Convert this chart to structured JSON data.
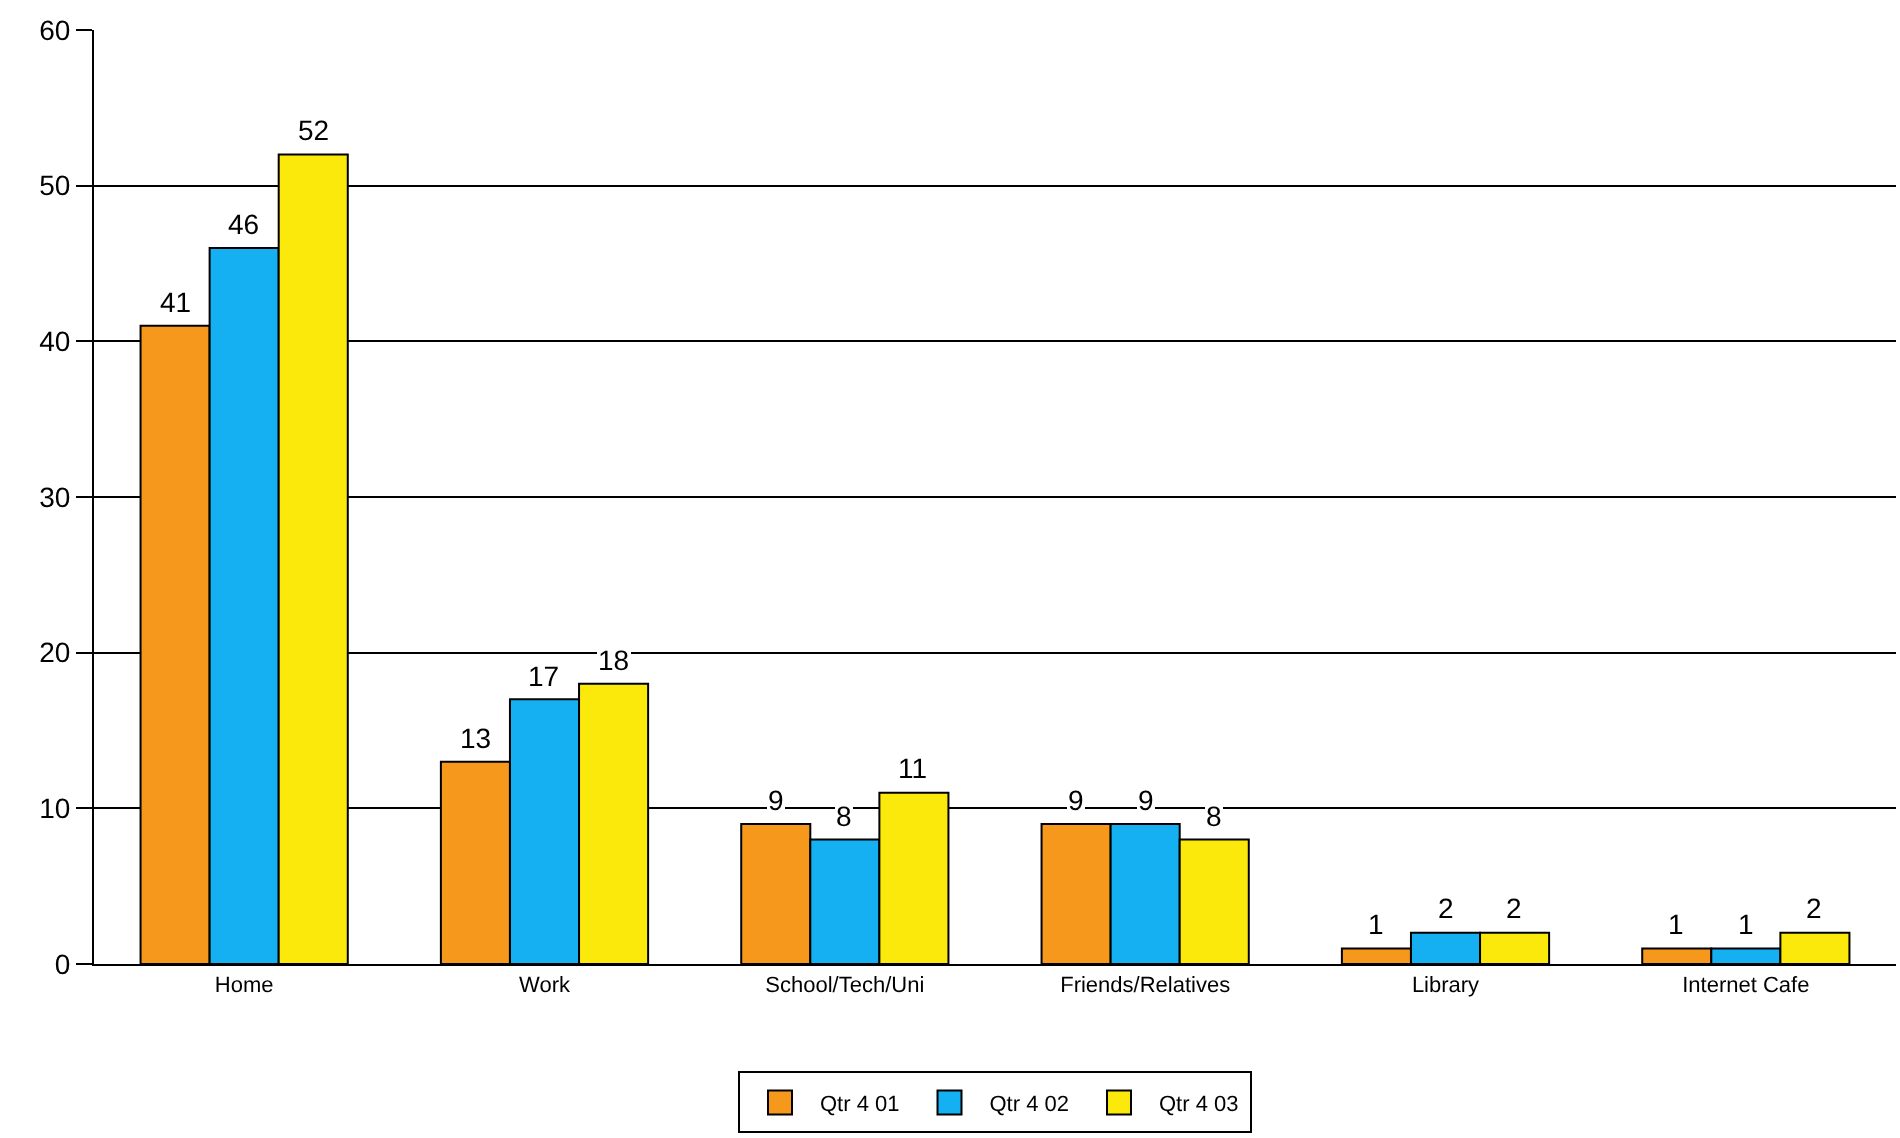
{
  "chart_data": {
    "type": "bar",
    "categories": [
      "Home",
      "Work",
      "School/Tech/Uni",
      "Friends/Relatives",
      "Library",
      "Internet Cafe"
    ],
    "series": [
      {
        "name": "Qtr 4 01",
        "color": "#f5981c",
        "values": [
          41,
          13,
          9,
          9,
          1,
          1
        ]
      },
      {
        "name": "Qtr 4 02",
        "color": "#14b0f2",
        "values": [
          46,
          17,
          8,
          9,
          2,
          1
        ]
      },
      {
        "name": "Qtr 4 03",
        "color": "#fbe90c",
        "values": [
          52,
          18,
          11,
          8,
          2,
          2
        ]
      }
    ],
    "ylim": [
      0,
      60
    ],
    "yticks": [
      0,
      10,
      20,
      30,
      40,
      50,
      60
    ],
    "grid": "y",
    "legend": "bottom",
    "data_labels": true
  }
}
